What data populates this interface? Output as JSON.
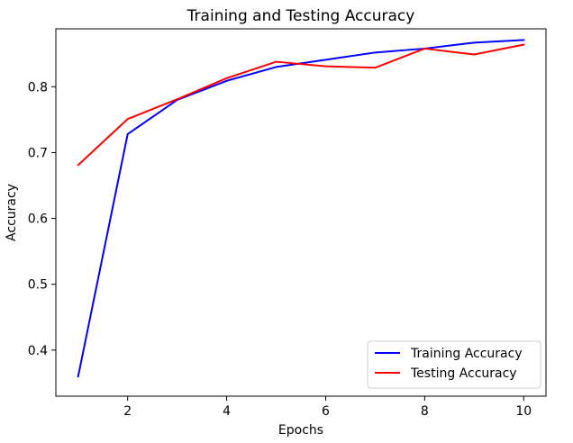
{
  "chart_data": {
    "type": "line",
    "title": "Training and Testing Accuracy",
    "xlabel": "Epochs",
    "ylabel": "Accuracy",
    "x": [
      1,
      2,
      3,
      4,
      5,
      6,
      7,
      8,
      9,
      10
    ],
    "xticks": [
      "2",
      "4",
      "6",
      "8",
      "10"
    ],
    "yticks": [
      "0.4",
      "0.5",
      "0.6",
      "0.7",
      "0.8"
    ],
    "xlim": [
      0.55,
      10.45
    ],
    "ylim": [
      0.33,
      0.888
    ],
    "grid": false,
    "legend_position": "bottom-right",
    "series": [
      {
        "name": "Training Accuracy",
        "color": "#0000ff",
        "values": [
          0.36,
          0.728,
          0.78,
          0.809,
          0.83,
          0.841,
          0.852,
          0.858,
          0.867,
          0.871
        ]
      },
      {
        "name": "Testing Accuracy",
        "color": "#ff0000",
        "values": [
          0.681,
          0.751,
          0.781,
          0.813,
          0.838,
          0.831,
          0.829,
          0.858,
          0.849,
          0.864
        ]
      }
    ]
  }
}
